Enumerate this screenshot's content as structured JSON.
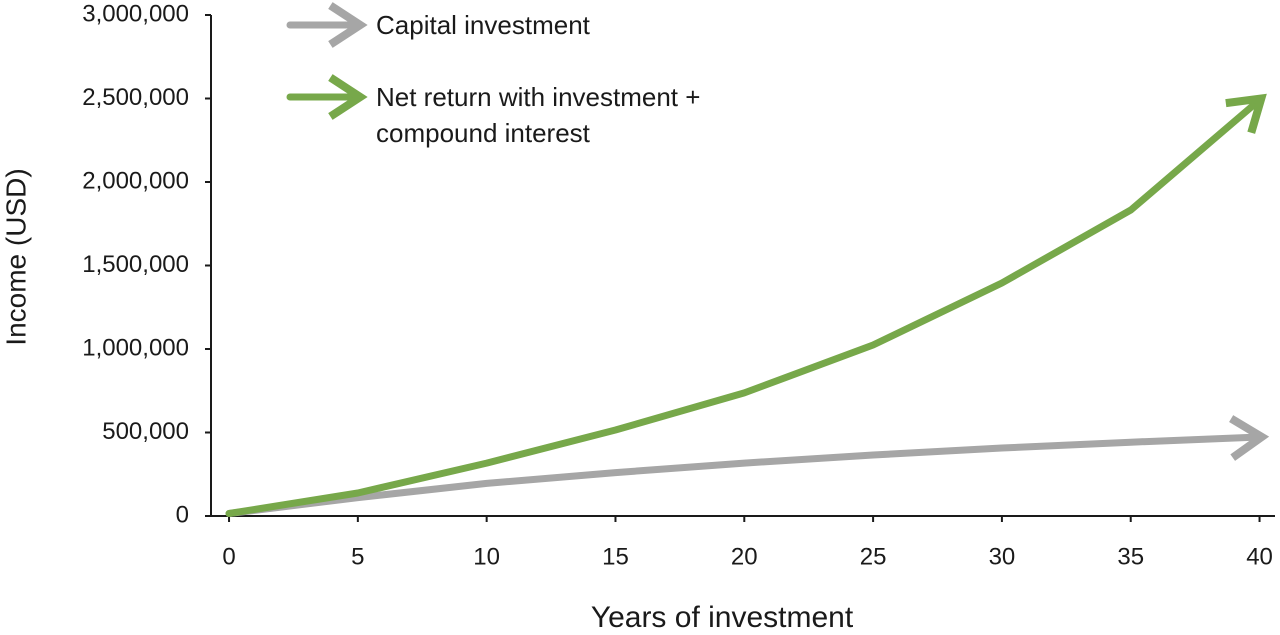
{
  "chart_data": {
    "type": "line",
    "x_label": "Years of investment",
    "y_label": "Income (USD)",
    "x": [
      0,
      5,
      10,
      15,
      20,
      25,
      30,
      35,
      40
    ],
    "series": [
      {
        "name": "Capital investment",
        "color": "#a6a6a6",
        "values": [
          15000,
          110000,
          195000,
          260000,
          317000,
          365000,
          407000,
          442000,
          473000
        ]
      },
      {
        "name": "Net return with investment + compound interest",
        "color": "#77a84a",
        "values": [
          15000,
          138000,
          317000,
          515000,
          737000,
          1024000,
          1395000,
          1832000,
          2491000
        ]
      }
    ],
    "xlim": [
      -0.7,
      40.6
    ],
    "ylim": [
      0,
      3000000
    ],
    "xticks": [
      0,
      5,
      10,
      15,
      20,
      25,
      30,
      35,
      40
    ],
    "yticks": [
      0,
      {
        "value": 500000,
        "label": "500,000"
      },
      {
        "value": 1000000,
        "label": "1,000,000"
      },
      {
        "value": 1500000,
        "label": "1,500,000"
      },
      {
        "value": 2000000,
        "label": "2,000,000"
      },
      {
        "value": 2500000,
        "label": "2,500,000"
      },
      {
        "value": 3000000,
        "label": "3,000,000"
      }
    ],
    "arrow_heads": true
  }
}
